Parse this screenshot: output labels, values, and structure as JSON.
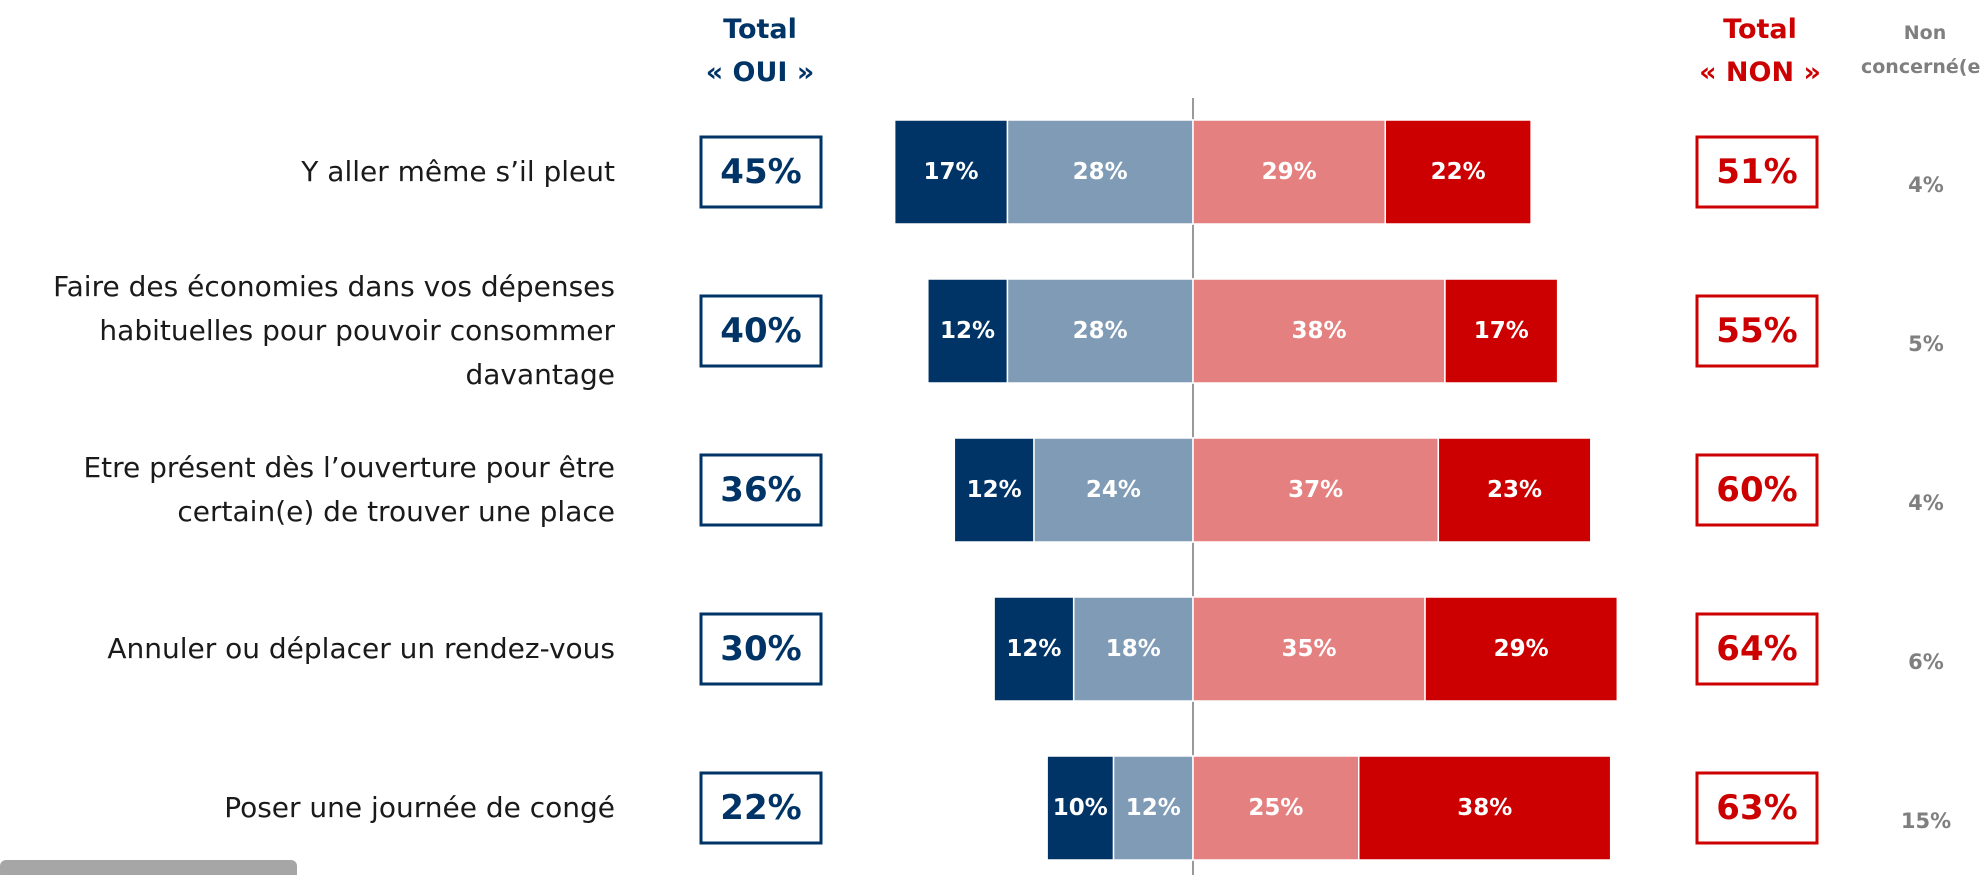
{
  "chart_data": {
    "type": "diverging_bar",
    "headers": {
      "oui": [
        "Total",
        "« OUI »"
      ],
      "non": [
        "Total",
        "« NON »"
      ],
      "nc": [
        "Non",
        "concerné(e)"
      ]
    },
    "categories": [
      "Y aller même s’il pleut",
      "Faire des économies dans vos dépenses\nhabituelles pour pouvoir consommer\ndavantage",
      "Etre présent dès l’ouverture pour être\ncertain(e) de trouver une place",
      "Annuler ou déplacer un rendez-vous",
      "Poser une journée de congé"
    ],
    "series": [
      {
        "color": "#003366",
        "values": [
          17,
          12,
          12,
          12,
          10
        ],
        "value_labels": [
          "17%",
          "12%",
          "12%",
          "12%",
          "10%"
        ]
      },
      {
        "color": "#7f9bb5",
        "values": [
          28,
          28,
          24,
          18,
          12
        ],
        "value_labels": [
          "28%",
          "28%",
          "24%",
          "18%",
          "12%"
        ]
      },
      {
        "color": "#e48080",
        "values": [
          29,
          38,
          37,
          35,
          25
        ],
        "value_labels": [
          "29%",
          "38%",
          "37%",
          "35%",
          "25%"
        ]
      },
      {
        "color": "#cc0000",
        "values": [
          22,
          17,
          23,
          29,
          38
        ],
        "value_labels": [
          "22%",
          "17%",
          "23%",
          "29%",
          "38%"
        ]
      }
    ],
    "total_oui": {
      "color": "#003366",
      "values": [
        45,
        40,
        36,
        30,
        22
      ],
      "value_labels": [
        "45%",
        "40%",
        "36%",
        "30%",
        "22%"
      ]
    },
    "total_non": {
      "color": "#cc0000",
      "values": [
        51,
        55,
        60,
        64,
        63
      ],
      "value_labels": [
        "51%",
        "55%",
        "60%",
        "64%",
        "63%"
      ]
    },
    "non_concerne": {
      "color": "#7f7f7f",
      "values": [
        4,
        5,
        4,
        6,
        15
      ],
      "value_labels": [
        "4%",
        "5%",
        "4%",
        "6%",
        "15%"
      ]
    }
  }
}
